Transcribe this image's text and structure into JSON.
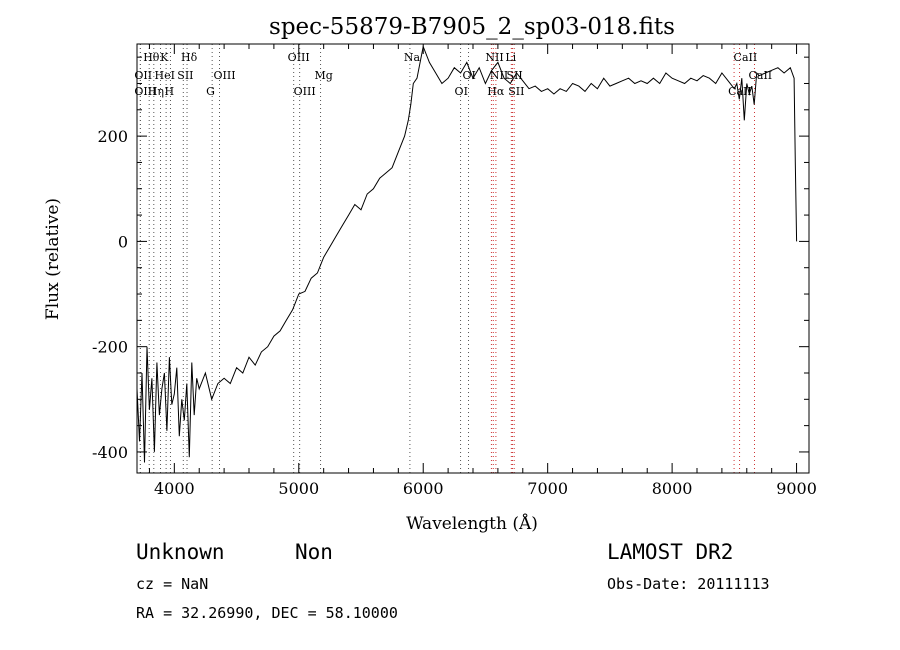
{
  "chart_data": {
    "type": "line",
    "title": "spec-55879-B7905_2_sp03-018.fits",
    "xlabel": "Wavelength (Å)",
    "ylabel": "Flux (relative)",
    "xlim": [
      3700,
      9100
    ],
    "ylim": [
      -440,
      375
    ],
    "xticks": [
      4000,
      5000,
      6000,
      7000,
      8000,
      9000
    ],
    "yticks": [
      -400,
      -200,
      0,
      200
    ],
    "grid": false,
    "series": [
      {
        "color": "#000000",
        "x": [
          3700,
          3720,
          3740,
          3760,
          3780,
          3800,
          3820,
          3840,
          3860,
          3880,
          3900,
          3920,
          3940,
          3960,
          3980,
          4000,
          4020,
          4040,
          4060,
          4080,
          4100,
          4120,
          4140,
          4160,
          4180,
          4200,
          4250,
          4300,
          4350,
          4400,
          4450,
          4500,
          4550,
          4600,
          4650,
          4700,
          4750,
          4800,
          4850,
          4900,
          4950,
          5000,
          5050,
          5100,
          5150,
          5200,
          5250,
          5300,
          5350,
          5400,
          5450,
          5500,
          5550,
          5600,
          5650,
          5700,
          5750,
          5800,
          5850,
          5880,
          5900,
          5920,
          5950,
          6000,
          6050,
          6100,
          6150,
          6200,
          6250,
          6300,
          6350,
          6400,
          6450,
          6500,
          6550,
          6600,
          6650,
          6700,
          6750,
          6800,
          6850,
          6900,
          6950,
          7000,
          7050,
          7100,
          7150,
          7200,
          7250,
          7300,
          7350,
          7400,
          7450,
          7500,
          7550,
          7600,
          7650,
          7700,
          7750,
          7800,
          7850,
          7900,
          7950,
          8000,
          8050,
          8100,
          8150,
          8200,
          8250,
          8300,
          8350,
          8400,
          8450,
          8500,
          8520,
          8540,
          8560,
          8580,
          8600,
          8620,
          8640,
          8660,
          8680,
          8700,
          8750,
          8800,
          8850,
          8900,
          8950,
          8980,
          8990,
          9000
        ],
        "y": [
          -280,
          -380,
          -250,
          -420,
          -200,
          -320,
          -260,
          -400,
          -230,
          -330,
          -280,
          -250,
          -360,
          -220,
          -310,
          -290,
          -240,
          -370,
          -300,
          -340,
          -270,
          -410,
          -230,
          -330,
          -260,
          -280,
          -250,
          -300,
          -270,
          -260,
          -270,
          -240,
          -250,
          -220,
          -235,
          -210,
          -200,
          -180,
          -170,
          -150,
          -130,
          -100,
          -95,
          -70,
          -60,
          -30,
          -10,
          10,
          30,
          50,
          70,
          60,
          90,
          100,
          120,
          130,
          140,
          170,
          200,
          230,
          260,
          300,
          310,
          370,
          340,
          320,
          300,
          310,
          330,
          320,
          340,
          310,
          330,
          300,
          325,
          340,
          310,
          300,
          320,
          305,
          290,
          295,
          285,
          290,
          280,
          290,
          285,
          300,
          295,
          285,
          300,
          290,
          310,
          295,
          300,
          305,
          310,
          300,
          305,
          300,
          310,
          300,
          320,
          310,
          305,
          300,
          310,
          305,
          315,
          310,
          300,
          320,
          305,
          290,
          300,
          270,
          310,
          230,
          300,
          280,
          295,
          260,
          320,
          315,
          320,
          325,
          330,
          320,
          330,
          310,
          150,
          0
        ]
      }
    ],
    "annotations": [
      {
        "label": "Hθ",
        "x": 3798
      },
      {
        "label": "K",
        "x": 3934
      },
      {
        "label": "Hδ",
        "x": 4102
      },
      {
        "label": "OII",
        "x": 3727
      },
      {
        "label": "HeI",
        "x": 3889
      },
      {
        "label": "SII",
        "x": 4072
      },
      {
        "label": "OIII",
        "x": 4363
      },
      {
        "label": "OIII",
        "x": 3727
      },
      {
        "label": "Hη",
        "x": 3835
      },
      {
        "label": "H",
        "x": 3969
      },
      {
        "label": "G",
        "x": 4304
      },
      {
        "label": "OIII",
        "x": 4959
      },
      {
        "label": "Mg",
        "x": 5175
      },
      {
        "label": "OIII",
        "x": 5007
      },
      {
        "label": "Na",
        "x": 5893
      },
      {
        "label": "OI",
        "x": 6364
      },
      {
        "label": "OI",
        "x": 6300
      },
      {
        "label": "NII",
        "x": 6548
      },
      {
        "label": "Li",
        "x": 6708
      },
      {
        "label": "NII",
        "x": 6584
      },
      {
        "label": "SII",
        "x": 6717
      },
      {
        "label": "Hα",
        "x": 6563
      },
      {
        "label": "SII",
        "x": 6731
      },
      {
        "label": "CaII",
        "x": 8542
      },
      {
        "label": "CaII",
        "x": 8662
      },
      {
        "label": "CaII",
        "x": 8498
      }
    ]
  },
  "info": {
    "class": "Unknown",
    "subclass": "Non",
    "survey": "LAMOST DR2",
    "cz": "cz = NaN",
    "obs_date": "Obs-Date: 20111113",
    "coords": "RA =  32.26990, DEC =  58.10000"
  }
}
